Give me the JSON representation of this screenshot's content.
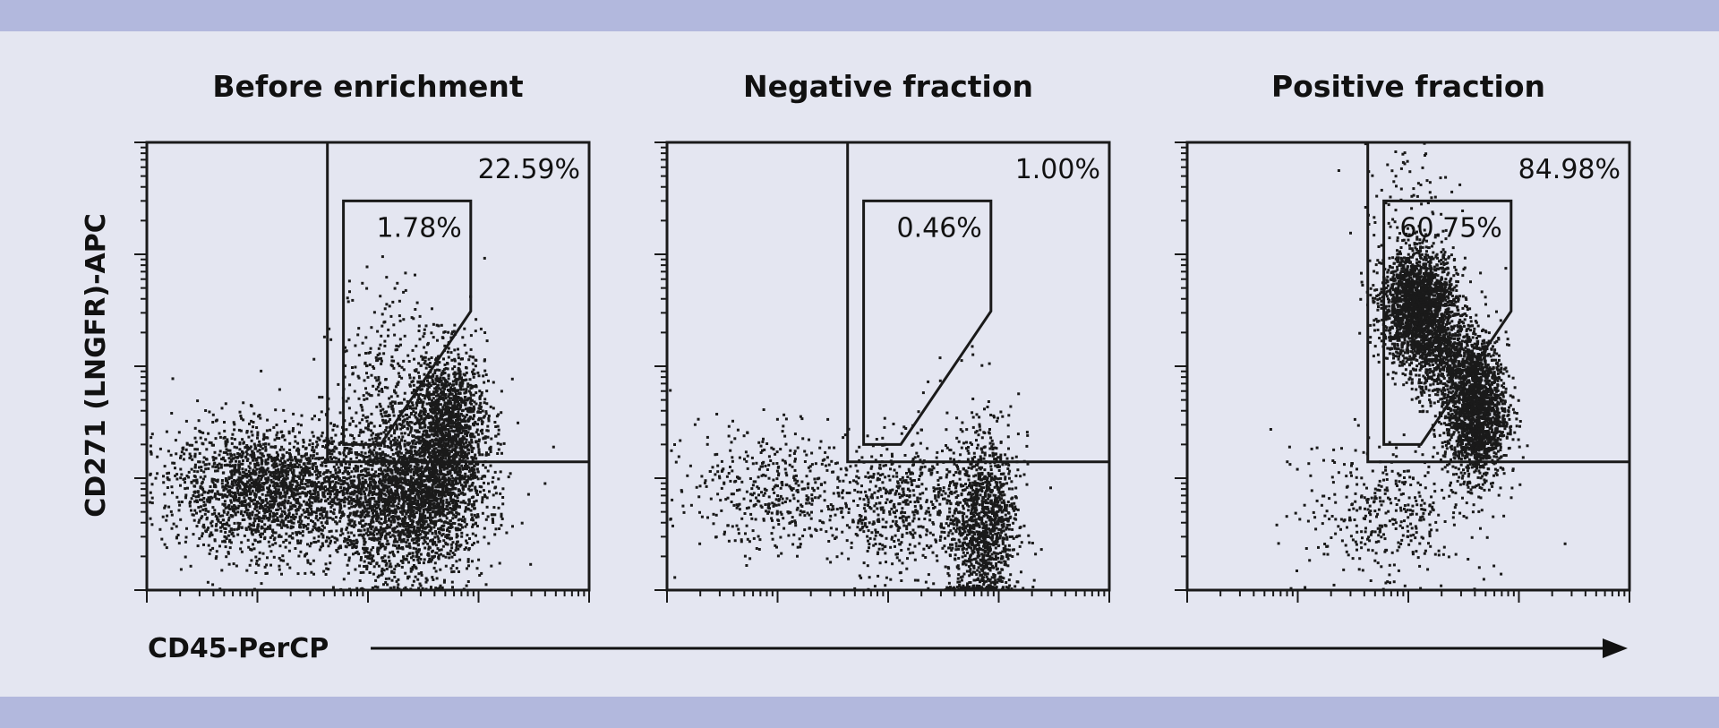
{
  "colors": {
    "band": "#b2b8dd",
    "background": "#e4e6f1",
    "ink": "#1a1a1a"
  },
  "chart_data": [
    {
      "type": "scatter",
      "title": "Before enrichment",
      "xlabel": "CD45-PerCP",
      "ylabel": "CD271 (LNGFR)-APC",
      "xscale": "log",
      "yscale": "log",
      "xlim": [
        1,
        10000
      ],
      "ylim": [
        1,
        10000
      ],
      "gates": [
        {
          "name": "outer",
          "percent": "22.59%",
          "polygon": [
            [
              43,
              10000
            ],
            [
              43,
              14
            ],
            [
              10000,
              14
            ],
            [
              10000,
              10000
            ]
          ]
        },
        {
          "name": "inner",
          "percent": "1.78%",
          "polygon": [
            [
              60,
              3000
            ],
            [
              60,
              20
            ],
            [
              130,
              20
            ],
            [
              850,
              310
            ],
            [
              850,
              3000
            ]
          ]
        }
      ],
      "populations": [
        {
          "x": 13,
          "y": 8,
          "sx": 0.45,
          "sy": 0.28,
          "n": 2200
        },
        {
          "x": 220,
          "y": 7,
          "sx": 0.35,
          "sy": 0.35,
          "n": 2600
        },
        {
          "x": 500,
          "y": 30,
          "sx": 0.18,
          "sy": 0.35,
          "n": 1500
        },
        {
          "x": 140,
          "y": 100,
          "sx": 0.22,
          "sy": 0.4,
          "n": 220
        }
      ]
    },
    {
      "type": "scatter",
      "title": "Negative fraction",
      "xlabel": "CD45-PerCP",
      "ylabel": "CD271 (LNGFR)-APC",
      "xscale": "log",
      "yscale": "log",
      "xlim": [
        1,
        10000
      ],
      "ylim": [
        1,
        10000
      ],
      "gates": [
        {
          "name": "outer",
          "percent": "1.00%",
          "polygon": [
            [
              43,
              10000
            ],
            [
              43,
              14
            ],
            [
              10000,
              14
            ],
            [
              10000,
              10000
            ]
          ]
        },
        {
          "name": "inner",
          "percent": "0.46%",
          "polygon": [
            [
              60,
              3000
            ],
            [
              60,
              20
            ],
            [
              130,
              20
            ],
            [
              850,
              310
            ],
            [
              850,
              3000
            ]
          ]
        }
      ],
      "populations": [
        {
          "x": 700,
          "y": 4,
          "sx": 0.16,
          "sy": 0.4,
          "n": 1300
        },
        {
          "x": 12,
          "y": 8,
          "sx": 0.45,
          "sy": 0.28,
          "n": 500
        },
        {
          "x": 120,
          "y": 6,
          "sx": 0.3,
          "sy": 0.3,
          "n": 500
        },
        {
          "x": 350,
          "y": 50,
          "sx": 0.2,
          "sy": 0.25,
          "n": 8
        }
      ]
    },
    {
      "type": "scatter",
      "title": "Positive fraction",
      "xlabel": "CD45-PerCP",
      "ylabel": "CD271 (LNGFR)-APC",
      "xscale": "log",
      "yscale": "log",
      "xlim": [
        1,
        10000
      ],
      "ylim": [
        1,
        10000
      ],
      "gates": [
        {
          "name": "outer",
          "percent": "84.98%",
          "polygon": [
            [
              43,
              10000
            ],
            [
              43,
              14
            ],
            [
              10000,
              14
            ],
            [
              10000,
              10000
            ]
          ]
        },
        {
          "name": "inner",
          "percent": "60.75%",
          "polygon": [
            [
              60,
              3000
            ],
            [
              60,
              20
            ],
            [
              130,
              20
            ],
            [
              850,
              310
            ],
            [
              850,
              3000
            ]
          ]
        }
      ],
      "populations": [
        {
          "x": 120,
          "y": 350,
          "sx": 0.17,
          "sy": 0.25,
          "n": 2200
        },
        {
          "x": 400,
          "y": 40,
          "sx": 0.14,
          "sy": 0.3,
          "n": 1800
        },
        {
          "x": 230,
          "y": 120,
          "sx": 0.18,
          "sy": 0.2,
          "n": 700
        },
        {
          "x": 60,
          "y": 5,
          "sx": 0.38,
          "sy": 0.3,
          "n": 400
        },
        {
          "x": 100,
          "y": 3000,
          "sx": 0.25,
          "sy": 0.35,
          "n": 90
        }
      ]
    }
  ],
  "x_axis_label": "CD45-PerCP",
  "y_axis_label": "CD271 (LNGFR)-APC"
}
